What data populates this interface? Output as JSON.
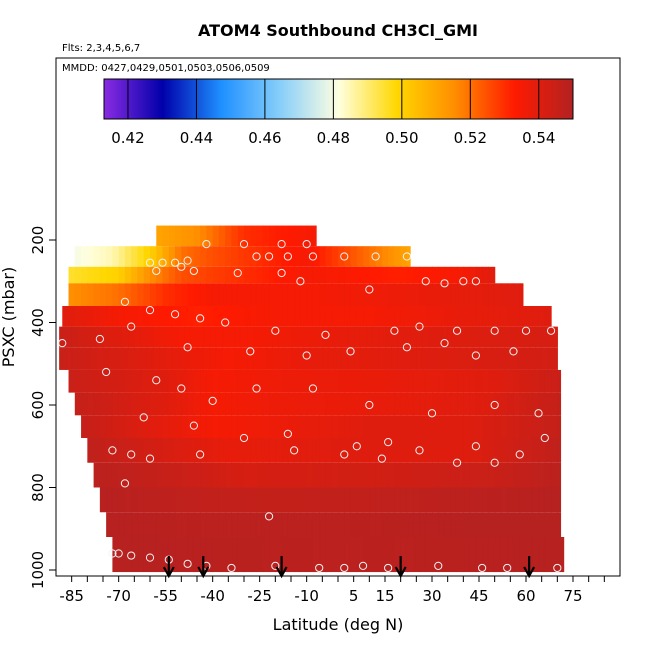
{
  "chart_data": {
    "type": "heatmap",
    "title": "ATOM4 Southbound CH3Cl_GMI",
    "flights_label": "Flts: 2,3,4,5,6,7",
    "dates_label": "MMDD: 0427,0429,0501,0503,0506,0509",
    "xlabel": "Latitude (deg N)",
    "ylabel": "PSXC (mbar)",
    "xlim": [
      -90,
      90
    ],
    "ylim": [
      1000,
      0
    ],
    "x_ticks": [
      -85,
      -70,
      -55,
      -40,
      -25,
      -10,
      5,
      15,
      30,
      45,
      60,
      75
    ],
    "x_tick_labels": [
      "-85",
      "-70",
      "-55",
      "-40",
      "-25",
      "-10",
      "5",
      "15",
      "30",
      "45",
      "60",
      "75"
    ],
    "y_ticks": [
      200,
      400,
      600,
      800,
      1000
    ],
    "y_tick_labels": [
      "200",
      "400",
      "600",
      "800",
      "1000"
    ],
    "colorbar": {
      "range": [
        0.413,
        0.55
      ],
      "ticks": [
        0.42,
        0.44,
        0.46,
        0.48,
        0.5,
        0.52,
        0.54
      ],
      "tick_labels": [
        "0.42",
        "0.44",
        "0.46",
        "0.48",
        "0.50",
        "0.52",
        "0.54"
      ],
      "colors": [
        "#8a2be2",
        "#0000aa",
        "#1e90ff",
        "#87cefa",
        "#ffffe0",
        "#ffd700",
        "#ff8c00",
        "#ff1a00",
        "#b22222"
      ]
    },
    "layers": [
      {
        "p_top": 165,
        "p_bot": 215,
        "lat_min": -58,
        "lat_max": -7,
        "base": 0.518,
        "profile": [
          [
            -58,
            0.51
          ],
          [
            -45,
            0.515
          ],
          [
            -30,
            0.53
          ],
          [
            -7,
            0.535
          ]
        ]
      },
      {
        "p_top": 215,
        "p_bot": 265,
        "lat_min": -84,
        "lat_max": 23,
        "base": 0.53,
        "profile": [
          [
            -84,
            0.48
          ],
          [
            -72,
            0.485
          ],
          [
            -60,
            0.5
          ],
          [
            -55,
            0.51
          ],
          [
            -50,
            0.52
          ],
          [
            -40,
            0.525
          ],
          [
            -10,
            0.535
          ],
          [
            10,
            0.52
          ],
          [
            23,
            0.51
          ]
        ]
      },
      {
        "p_top": 265,
        "p_bot": 305,
        "lat_min": -86,
        "lat_max": 50,
        "base": 0.535,
        "profile": [
          [
            -86,
            0.495
          ],
          [
            -70,
            0.5
          ],
          [
            -60,
            0.515
          ],
          [
            -50,
            0.525
          ],
          [
            -30,
            0.53
          ],
          [
            -10,
            0.535
          ],
          [
            20,
            0.532
          ],
          [
            40,
            0.535
          ],
          [
            50,
            0.54
          ]
        ]
      },
      {
        "p_top": 305,
        "p_bot": 360,
        "lat_min": -86,
        "lat_max": 59,
        "base": 0.535,
        "profile": [
          [
            -86,
            0.515
          ],
          [
            -70,
            0.52
          ],
          [
            -55,
            0.53
          ],
          [
            -40,
            0.535
          ],
          [
            -10,
            0.535
          ],
          [
            20,
            0.537
          ],
          [
            59,
            0.54
          ]
        ]
      },
      {
        "p_top": 360,
        "p_bot": 410,
        "lat_min": -88,
        "lat_max": 68,
        "base": 0.538,
        "profile": [
          [
            -88,
            0.54
          ],
          [
            -70,
            0.535
          ],
          [
            -45,
            0.532
          ],
          [
            -20,
            0.535
          ],
          [
            10,
            0.535
          ],
          [
            40,
            0.538
          ],
          [
            68,
            0.54
          ]
        ]
      },
      {
        "p_top": 410,
        "p_bot": 460,
        "lat_min": -89,
        "lat_max": 70,
        "base": 0.54,
        "profile": [
          [
            -89,
            0.545
          ],
          [
            -70,
            0.54
          ],
          [
            -50,
            0.535
          ],
          [
            -30,
            0.535
          ],
          [
            0,
            0.538
          ],
          [
            30,
            0.54
          ],
          [
            70,
            0.542
          ]
        ]
      },
      {
        "p_top": 460,
        "p_bot": 515,
        "lat_min": -89,
        "lat_max": 70,
        "base": 0.54,
        "profile": [
          [
            -89,
            0.545
          ],
          [
            -60,
            0.54
          ],
          [
            -35,
            0.535
          ],
          [
            -10,
            0.538
          ],
          [
            25,
            0.54
          ],
          [
            70,
            0.543
          ]
        ]
      },
      {
        "p_top": 515,
        "p_bot": 570,
        "lat_min": -86,
        "lat_max": 71,
        "base": 0.54,
        "profile": [
          [
            -86,
            0.545
          ],
          [
            -55,
            0.54
          ],
          [
            -40,
            0.535
          ],
          [
            -15,
            0.537
          ],
          [
            20,
            0.538
          ],
          [
            50,
            0.54
          ],
          [
            71,
            0.545
          ]
        ]
      },
      {
        "p_top": 570,
        "p_bot": 625,
        "lat_min": -84,
        "lat_max": 71,
        "base": 0.54,
        "profile": [
          [
            -84,
            0.546
          ],
          [
            -55,
            0.54
          ],
          [
            -40,
            0.535
          ],
          [
            -20,
            0.537
          ],
          [
            15,
            0.538
          ],
          [
            45,
            0.54
          ],
          [
            71,
            0.546
          ]
        ]
      },
      {
        "p_top": 625,
        "p_bot": 680,
        "lat_min": -82,
        "lat_max": 71,
        "base": 0.541,
        "profile": [
          [
            -82,
            0.546
          ],
          [
            -60,
            0.54
          ],
          [
            -40,
            0.535
          ],
          [
            -20,
            0.537
          ],
          [
            10,
            0.54
          ],
          [
            40,
            0.54
          ],
          [
            71,
            0.546
          ]
        ]
      },
      {
        "p_top": 680,
        "p_bot": 740,
        "lat_min": -80,
        "lat_max": 71,
        "base": 0.542,
        "profile": [
          [
            -80,
            0.547
          ],
          [
            -55,
            0.542
          ],
          [
            -35,
            0.538
          ],
          [
            0,
            0.54
          ],
          [
            40,
            0.54
          ],
          [
            71,
            0.547
          ]
        ]
      },
      {
        "p_top": 740,
        "p_bot": 800,
        "lat_min": -78,
        "lat_max": 71,
        "base": 0.544,
        "profile": [
          [
            -78,
            0.548
          ],
          [
            -50,
            0.545
          ],
          [
            -30,
            0.542
          ],
          [
            10,
            0.543
          ],
          [
            50,
            0.545
          ],
          [
            71,
            0.548
          ]
        ]
      },
      {
        "p_top": 800,
        "p_bot": 860,
        "lat_min": -76,
        "lat_max": 71,
        "base": 0.546,
        "profile": [
          [
            -76,
            0.549
          ],
          [
            -50,
            0.547
          ],
          [
            -20,
            0.546
          ],
          [
            20,
            0.547
          ],
          [
            71,
            0.549
          ]
        ]
      },
      {
        "p_top": 860,
        "p_bot": 920,
        "lat_min": -74,
        "lat_max": 71,
        "base": 0.547,
        "profile": [
          [
            -74,
            0.549
          ],
          [
            -40,
            0.548
          ],
          [
            0,
            0.548
          ],
          [
            40,
            0.549
          ],
          [
            71,
            0.549
          ]
        ]
      },
      {
        "p_top": 920,
        "p_bot": 1005,
        "lat_min": -72,
        "lat_max": 72,
        "base": 0.548,
        "profile": [
          [
            -72,
            0.549
          ],
          [
            0,
            0.548
          ],
          [
            72,
            0.549
          ]
        ]
      }
    ],
    "points": [
      [
        -42,
        210
      ],
      [
        -30,
        210
      ],
      [
        -18,
        210
      ],
      [
        -10,
        210
      ],
      [
        -26,
        240
      ],
      [
        -22,
        240
      ],
      [
        -16,
        240
      ],
      [
        -8,
        240
      ],
      [
        2,
        240
      ],
      [
        12,
        240
      ],
      [
        22,
        240
      ],
      [
        -48,
        250
      ],
      [
        -60,
        255
      ],
      [
        -56,
        255
      ],
      [
        -52,
        255
      ],
      [
        -50,
        265
      ],
      [
        -58,
        275
      ],
      [
        -46,
        275
      ],
      [
        -32,
        280
      ],
      [
        -18,
        280
      ],
      [
        -12,
        300
      ],
      [
        28,
        300
      ],
      [
        34,
        305
      ],
      [
        40,
        300
      ],
      [
        44,
        300
      ],
      [
        10,
        320
      ],
      [
        -68,
        350
      ],
      [
        -60,
        370
      ],
      [
        -52,
        380
      ],
      [
        -44,
        390
      ],
      [
        -36,
        400
      ],
      [
        -66,
        410
      ],
      [
        -20,
        420
      ],
      [
        -4,
        430
      ],
      [
        18,
        420
      ],
      [
        26,
        410
      ],
      [
        38,
        420
      ],
      [
        50,
        420
      ],
      [
        60,
        420
      ],
      [
        68,
        420
      ],
      [
        -76,
        440
      ],
      [
        -48,
        460
      ],
      [
        -28,
        470
      ],
      [
        -10,
        480
      ],
      [
        4,
        470
      ],
      [
        22,
        460
      ],
      [
        34,
        450
      ],
      [
        44,
        480
      ],
      [
        56,
        470
      ],
      [
        -88,
        450
      ],
      [
        -74,
        520
      ],
      [
        -58,
        540
      ],
      [
        -50,
        560
      ],
      [
        -40,
        590
      ],
      [
        -26,
        560
      ],
      [
        -8,
        560
      ],
      [
        10,
        600
      ],
      [
        30,
        620
      ],
      [
        50,
        600
      ],
      [
        64,
        620
      ],
      [
        -62,
        630
      ],
      [
        -46,
        650
      ],
      [
        -30,
        680
      ],
      [
        -16,
        670
      ],
      [
        6,
        700
      ],
      [
        16,
        690
      ],
      [
        26,
        710
      ],
      [
        44,
        700
      ],
      [
        58,
        720
      ],
      [
        66,
        680
      ],
      [
        -72,
        710
      ],
      [
        -66,
        720
      ],
      [
        -60,
        730
      ],
      [
        -44,
        720
      ],
      [
        -14,
        710
      ],
      [
        2,
        720
      ],
      [
        14,
        730
      ],
      [
        38,
        740
      ],
      [
        50,
        740
      ],
      [
        -68,
        790
      ],
      [
        -22,
        870
      ],
      [
        -72,
        960
      ],
      [
        -70,
        960
      ],
      [
        -66,
        965
      ],
      [
        -60,
        970
      ],
      [
        -54,
        975
      ],
      [
        -48,
        985
      ],
      [
        -42,
        990
      ],
      [
        -34,
        995
      ],
      [
        -20,
        990
      ],
      [
        -6,
        995
      ],
      [
        2,
        995
      ],
      [
        8,
        990
      ],
      [
        16,
        995
      ],
      [
        32,
        990
      ],
      [
        46,
        995
      ],
      [
        54,
        995
      ],
      [
        70,
        995
      ]
    ],
    "arrows": [
      -54,
      -43,
      -18,
      20,
      61
    ]
  }
}
